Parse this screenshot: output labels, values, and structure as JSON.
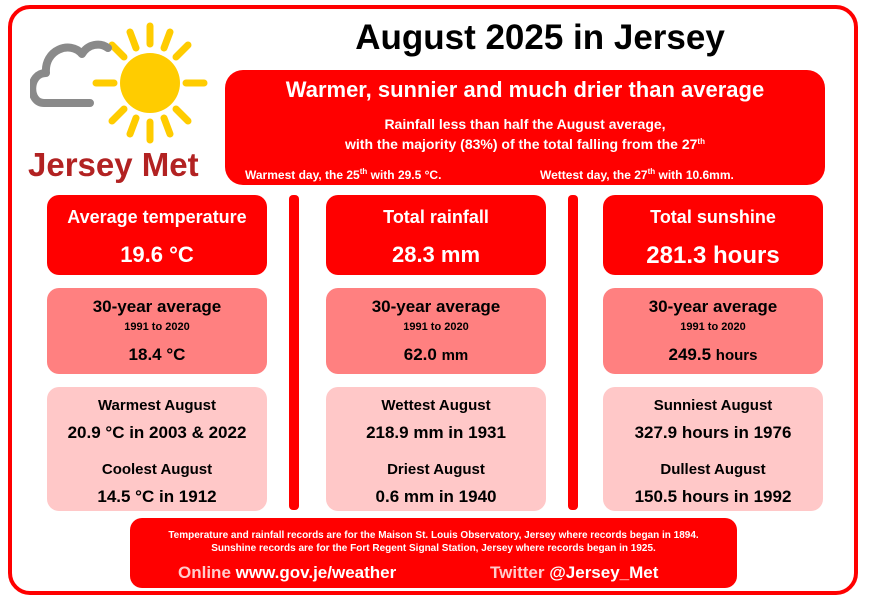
{
  "title": "August 2025 in Jersey",
  "logo": {
    "text": "Jersey Met",
    "icon": "cloud-sun-icon"
  },
  "headline": "Warmer, sunnier and much drier than average",
  "subline1": "Rainfall less than half the August average,",
  "subline2_pre": "with the majority (83%) of the total falling from the 27",
  "subline2_sup": "th",
  "warmest_day_pre": "Warmest day, the 25",
  "warmest_day_sup": "th",
  "warmest_day_post": " with 29.5 °C.",
  "wettest_day_pre": "Wettest day, the 27",
  "wettest_day_sup": "th",
  "wettest_day_post": " with 10.6mm.",
  "columns": [
    {
      "label": "Average temperature",
      "value": "19.6 °C",
      "avg_label": "30-year average",
      "avg_period": "1991 to 2020",
      "avg_value": "18.4 °C",
      "avg_unit": "",
      "rec1_label": "Warmest August",
      "rec1_value": "20.9 °C in 2003 & 2022",
      "rec2_label": "Coolest August",
      "rec2_value": "14.5 °C in 1912"
    },
    {
      "label": "Total rainfall",
      "value": "28.3 mm",
      "avg_label": "30-year average",
      "avg_period": "1991 to 2020",
      "avg_value": "62.0",
      "avg_unit": "mm",
      "rec1_label": "Wettest August",
      "rec1_value": "218.9 mm in 1931",
      "rec2_label": "Driest August",
      "rec2_value": "0.6 mm in 1940"
    },
    {
      "label": "Total sunshine",
      "value": "281.3 hours",
      "avg_label": "30-year average",
      "avg_period": "1991 to 2020",
      "avg_value": "249.5",
      "avg_unit": "hours",
      "rec1_label": "Sunniest August",
      "rec1_value": "327.9 hours in 1976",
      "rec2_label": "Dullest August",
      "rec2_value": "150.5 hours in 1992"
    }
  ],
  "footer": {
    "note1": "Temperature and rainfall records are for the Maison St. Louis Observatory, Jersey where records began in 1894.",
    "note2": "Sunshine records are for the Fort Regent Signal Station, Jersey where records began in 1925.",
    "online_label": "Online",
    "online_value": "www.gov.je/weather",
    "twitter_label": "Twitter",
    "twitter_value": "@Jersey_Met"
  },
  "colors": {
    "accent": "#ff0000",
    "avg_box": "#ff8080",
    "record_box": "#ffc8c8",
    "logo_text": "#b22222",
    "sun": "#ffcc00"
  }
}
